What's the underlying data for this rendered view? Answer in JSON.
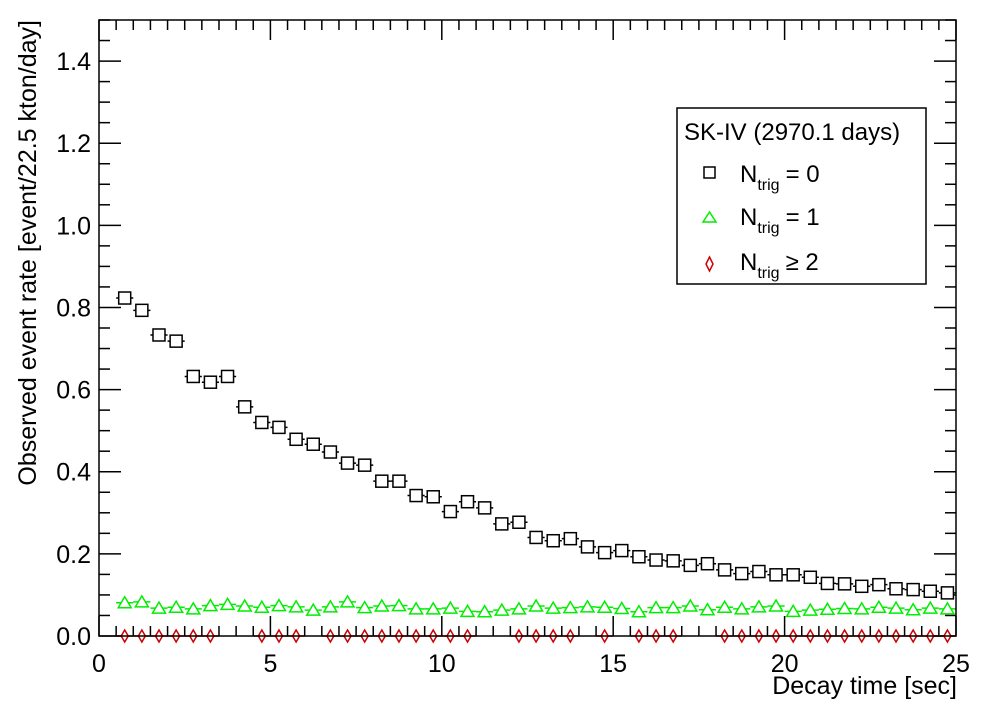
{
  "chart_data": {
    "type": "scatter",
    "title": "",
    "xlabel": "Decay time [sec]",
    "ylabel": "Observed event rate [event/22.5 kton/day]",
    "xlim": [
      0,
      25
    ],
    "ylim": [
      0,
      1.5
    ],
    "x_major_ticks": [
      0,
      5,
      10,
      15,
      20,
      25
    ],
    "y_major_ticks": [
      0.0,
      0.2,
      0.4,
      0.6,
      0.8,
      1.0,
      1.2,
      1.4
    ],
    "x_tick_labels": [
      "0",
      "5",
      "10",
      "15",
      "20",
      "25"
    ],
    "y_tick_labels": [
      "0.0",
      "0.2",
      "0.4",
      "0.6",
      "0.8",
      "1.0",
      "1.2",
      "1.4"
    ],
    "bin_width": 0.5,
    "legend": {
      "title": "SK-IV (2970.1 days)",
      "placement": "top-right",
      "entries": [
        {
          "base": "N",
          "sub": "trig",
          "rel": "= 0"
        },
        {
          "base": "N",
          "sub": "trig",
          "rel": "= 1"
        },
        {
          "base": "N",
          "sub": "trig",
          "rel": "≥ 2"
        }
      ]
    },
    "series": [
      {
        "name": "N_trig = 0",
        "marker": "open-square",
        "color": "#000000",
        "x": [
          0.75,
          1.25,
          1.75,
          2.25,
          2.75,
          3.25,
          3.75,
          4.25,
          4.75,
          5.25,
          5.75,
          6.25,
          6.75,
          7.25,
          7.75,
          8.25,
          8.75,
          9.25,
          9.75,
          10.25,
          10.75,
          11.25,
          11.75,
          12.25,
          12.75,
          13.25,
          13.75,
          14.25,
          14.75,
          15.25,
          15.75,
          16.25,
          16.75,
          17.25,
          17.75,
          18.25,
          18.75,
          19.25,
          19.75,
          20.25,
          20.75,
          21.25,
          21.75,
          22.25,
          22.75,
          23.25,
          23.75,
          24.25,
          24.75
        ],
        "y": [
          0.823,
          0.793,
          0.733,
          0.718,
          0.632,
          0.618,
          0.632,
          0.558,
          0.52,
          0.508,
          0.479,
          0.467,
          0.448,
          0.421,
          0.416,
          0.377,
          0.377,
          0.342,
          0.339,
          0.303,
          0.327,
          0.312,
          0.273,
          0.277,
          0.24,
          0.232,
          0.237,
          0.217,
          0.203,
          0.208,
          0.193,
          0.185,
          0.183,
          0.172,
          0.176,
          0.161,
          0.152,
          0.157,
          0.149,
          0.149,
          0.143,
          0.128,
          0.127,
          0.121,
          0.125,
          0.115,
          0.113,
          0.109,
          0.105
        ]
      },
      {
        "name": "N_trig = 1",
        "marker": "open-triangle",
        "color": "#00ee00",
        "x": [
          0.75,
          1.25,
          1.75,
          2.25,
          2.75,
          3.25,
          3.75,
          4.25,
          4.75,
          5.25,
          5.75,
          6.25,
          6.75,
          7.25,
          7.75,
          8.25,
          8.75,
          9.25,
          9.75,
          10.25,
          10.75,
          11.25,
          11.75,
          12.25,
          12.75,
          13.25,
          13.75,
          14.25,
          14.75,
          15.25,
          15.75,
          16.25,
          16.75,
          17.25,
          17.75,
          18.25,
          18.75,
          19.25,
          19.75,
          20.25,
          20.75,
          21.25,
          21.75,
          22.25,
          22.75,
          23.25,
          23.75,
          24.25,
          24.75
        ],
        "y": [
          0.081,
          0.083,
          0.068,
          0.07,
          0.066,
          0.074,
          0.077,
          0.073,
          0.07,
          0.074,
          0.071,
          0.063,
          0.071,
          0.083,
          0.069,
          0.073,
          0.074,
          0.066,
          0.066,
          0.068,
          0.06,
          0.059,
          0.063,
          0.066,
          0.073,
          0.068,
          0.069,
          0.071,
          0.07,
          0.067,
          0.059,
          0.069,
          0.069,
          0.073,
          0.064,
          0.07,
          0.066,
          0.071,
          0.073,
          0.06,
          0.063,
          0.065,
          0.067,
          0.066,
          0.07,
          0.068,
          0.064,
          0.068,
          0.066
        ]
      },
      {
        "name": "N_trig ≥ 2",
        "marker": "open-diamond",
        "color": "#cc0000",
        "x": [
          0.75,
          1.25,
          1.75,
          2.25,
          2.75,
          3.25,
          4.75,
          5.25,
          5.75,
          6.75,
          7.25,
          7.75,
          8.25,
          8.75,
          9.25,
          9.75,
          10.25,
          10.75,
          12.25,
          12.75,
          13.25,
          13.75,
          14.75,
          15.75,
          16.25,
          16.75,
          18.25,
          18.75,
          19.25,
          19.75,
          20.25,
          20.75,
          21.25,
          21.75,
          22.25,
          22.75,
          23.25,
          23.75,
          24.25,
          24.75
        ],
        "y": [
          0,
          0,
          0,
          0,
          0,
          0,
          0,
          0,
          0,
          0,
          0,
          0,
          0,
          0,
          0,
          0,
          0,
          0,
          0,
          0,
          0,
          0,
          0,
          0,
          0,
          0,
          0,
          0,
          0,
          0,
          0,
          0,
          0,
          0,
          0,
          0,
          0,
          0,
          0,
          0
        ]
      }
    ]
  }
}
